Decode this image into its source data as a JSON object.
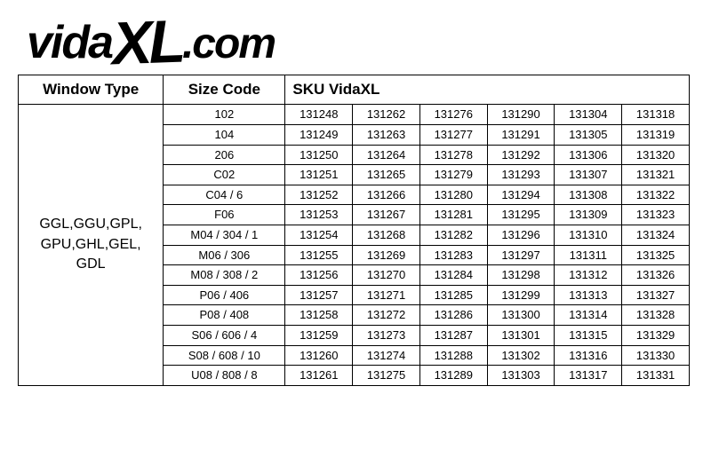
{
  "logo": {
    "part1": "vida",
    "part2": "XL",
    "part3": ".com"
  },
  "table": {
    "headers": {
      "window_type": "Window Type",
      "size_code": "Size Code",
      "sku": "SKU VidaXL"
    },
    "window_type_label": "GGL,GGU,GPL,\nGPU,GHL,GEL,\nGDL",
    "size_codes": [
      "102",
      "104",
      "206",
      "C02",
      "C04 / 6",
      "F06",
      "M04 / 304 / 1",
      "M06 / 306",
      "M08 / 308 / 2",
      "P06 / 406",
      "P08 / 408",
      "S06 / 606 / 4",
      "S08 / 608 / 10",
      "U08 / 808 / 8"
    ],
    "sku_rows": [
      [
        "131248",
        "131262",
        "131276",
        "131290",
        "131304",
        "131318"
      ],
      [
        "131249",
        "131263",
        "131277",
        "131291",
        "131305",
        "131319"
      ],
      [
        "131250",
        "131264",
        "131278",
        "131292",
        "131306",
        "131320"
      ],
      [
        "131251",
        "131265",
        "131279",
        "131293",
        "131307",
        "131321"
      ],
      [
        "131252",
        "131266",
        "131280",
        "131294",
        "131308",
        "131322"
      ],
      [
        "131253",
        "131267",
        "131281",
        "131295",
        "131309",
        "131323"
      ],
      [
        "131254",
        "131268",
        "131282",
        "131296",
        "131310",
        "131324"
      ],
      [
        "131255",
        "131269",
        "131283",
        "131297",
        "131311",
        "131325"
      ],
      [
        "131256",
        "131270",
        "131284",
        "131298",
        "131312",
        "131326"
      ],
      [
        "131257",
        "131271",
        "131285",
        "131299",
        "131313",
        "131327"
      ],
      [
        "131258",
        "131272",
        "131286",
        "131300",
        "131314",
        "131328"
      ],
      [
        "131259",
        "131273",
        "131287",
        "131301",
        "131315",
        "131329"
      ],
      [
        "131260",
        "131274",
        "131288",
        "131302",
        "131316",
        "131330"
      ],
      [
        "131261",
        "131275",
        "131289",
        "131303",
        "131317",
        "131331"
      ]
    ],
    "colors": {
      "border": "#000000",
      "bg": "#ffffff",
      "text": "#000000"
    },
    "font_sizes": {
      "header": 17,
      "body": 13,
      "window_type_cell": 16
    }
  }
}
